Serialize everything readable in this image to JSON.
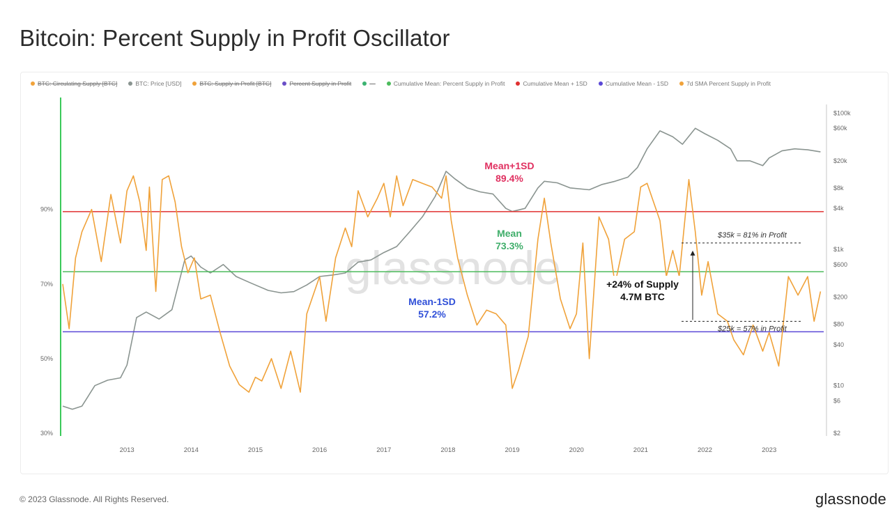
{
  "page": {
    "title": "Bitcoin: Percent Supply in Profit Oscillator",
    "footer": "© 2023 Glassnode. All Rights Reserved.",
    "brand": "glassnode"
  },
  "legend": [
    {
      "label": "BTC: Circulating Supply [BTC]",
      "color": "#f0a23a",
      "struck": true
    },
    {
      "label": "BTC: Price [USD]",
      "color": "#8a9490",
      "struck": false
    },
    {
      "label": "BTC: Supply in Profit [BTC]",
      "color": "#f0a23a",
      "struck": true
    },
    {
      "label": "Percent Supply in Profit",
      "color": "#6a4fc7",
      "struck": true
    },
    {
      "label": "—",
      "color": "#3cb371",
      "struck": true
    },
    {
      "label": "Cumulative Mean: Percent Supply in Profit",
      "color": "#4cbb5c",
      "struck": false
    },
    {
      "label": "Cumulative Mean + 1SD",
      "color": "#e03030",
      "struck": false
    },
    {
      "label": "Cumulative Mean - 1SD",
      "color": "#5a48d6",
      "struck": false
    },
    {
      "label": "7d SMA Percent Supply in Profit",
      "color": "#f0a23a",
      "struck": false
    }
  ],
  "chart_data": {
    "type": "line",
    "title": "Bitcoin: Percent Supply in Profit Oscillator",
    "watermark": "glassnode",
    "x_range": [
      2012.0,
      2023.85
    ],
    "x_ticks": [
      {
        "value": 2013,
        "label": "2013"
      },
      {
        "value": 2014,
        "label": "2014"
      },
      {
        "value": 2015,
        "label": "2015"
      },
      {
        "value": 2016,
        "label": "2016"
      },
      {
        "value": 2017,
        "label": "2017"
      },
      {
        "value": 2018,
        "label": "2018"
      },
      {
        "value": 2019,
        "label": "2019"
      },
      {
        "value": 2020,
        "label": "2020"
      },
      {
        "value": 2021,
        "label": "2021"
      },
      {
        "value": 2022,
        "label": "2022"
      },
      {
        "value": 2023,
        "label": "2023"
      }
    ],
    "y_left": {
      "range": [
        30,
        120
      ],
      "ticks": [
        {
          "value": 90,
          "label": "90%"
        },
        {
          "value": 70,
          "label": "70%"
        },
        {
          "value": 50,
          "label": "50%"
        },
        {
          "value": 30,
          "label": "30%"
        }
      ]
    },
    "y_right": {
      "scale": "log",
      "range": [
        2,
        170000
      ],
      "ticks": [
        {
          "value": 100000,
          "label": "$100k"
        },
        {
          "value": 60000,
          "label": "$60k"
        },
        {
          "value": 20000,
          "label": "$20k"
        },
        {
          "value": 8000,
          "label": "$8k"
        },
        {
          "value": 4000,
          "label": "$4k"
        },
        {
          "value": 1000,
          "label": "$1k"
        },
        {
          "value": 600,
          "label": "$600"
        },
        {
          "value": 200,
          "label": "$200"
        },
        {
          "value": 80,
          "label": "$80"
        },
        {
          "value": 40,
          "label": "$40"
        },
        {
          "value": 10,
          "label": "$10"
        },
        {
          "value": 6,
          "label": "$6"
        },
        {
          "value": 2,
          "label": "$2"
        }
      ]
    },
    "reference_lines": [
      {
        "name": "Mean+1SD",
        "value": 89.4,
        "color": "#e03030",
        "label_title": "Mean+1SD",
        "label_value": "89.4%",
        "label_color": "#e03060"
      },
      {
        "name": "Mean",
        "value": 73.3,
        "color": "#4cbb5c",
        "label_title": "Mean",
        "label_value": "73.3%",
        "label_color": "#3fae6a"
      },
      {
        "name": "Mean-1SD",
        "value": 57.2,
        "color": "#5a48d6",
        "label_title": "Mean-1SD",
        "label_value": "57.2%",
        "label_color": "#3050d8"
      }
    ],
    "series": [
      {
        "name": "7d SMA Percent Supply in Profit",
        "color": "#f0a23a",
        "axis": "left",
        "x": [
          2012.0,
          2012.1,
          2012.2,
          2012.3,
          2012.45,
          2012.6,
          2012.75,
          2012.9,
          2013.0,
          2013.1,
          2013.2,
          2013.3,
          2013.35,
          2013.45,
          2013.55,
          2013.65,
          2013.75,
          2013.85,
          2013.95,
          2014.05,
          2014.15,
          2014.3,
          2014.45,
          2014.6,
          2014.75,
          2014.9,
          2015.0,
          2015.1,
          2015.25,
          2015.4,
          2015.55,
          2015.7,
          2015.8,
          2015.9,
          2016.0,
          2016.1,
          2016.25,
          2016.4,
          2016.5,
          2016.6,
          2016.75,
          2016.9,
          2017.0,
          2017.1,
          2017.2,
          2017.3,
          2017.45,
          2017.6,
          2017.75,
          2017.9,
          2017.97,
          2018.05,
          2018.15,
          2018.3,
          2018.45,
          2018.6,
          2018.75,
          2018.9,
          2019.0,
          2019.1,
          2019.25,
          2019.4,
          2019.5,
          2019.6,
          2019.75,
          2019.9,
          2020.0,
          2020.1,
          2020.2,
          2020.35,
          2020.5,
          2020.6,
          2020.75,
          2020.9,
          2021.0,
          2021.1,
          2021.2,
          2021.3,
          2021.4,
          2021.5,
          2021.6,
          2021.75,
          2021.85,
          2021.95,
          2022.05,
          2022.2,
          2022.35,
          2022.45,
          2022.6,
          2022.75,
          2022.9,
          2023.0,
          2023.15,
          2023.3,
          2023.45,
          2023.6,
          2023.7,
          2023.8
        ],
        "y": [
          70,
          58,
          77,
          84,
          90,
          76,
          94,
          81,
          95,
          99,
          92,
          79,
          96,
          68,
          98,
          99,
          92,
          80,
          73,
          77,
          66,
          67,
          57,
          48,
          43,
          41,
          45,
          44,
          50,
          42,
          52,
          41,
          62,
          67,
          72,
          60,
          77,
          85,
          80,
          95,
          88,
          93,
          97,
          88,
          99,
          91,
          98,
          97,
          96,
          93,
          99,
          87,
          77,
          67,
          59,
          63,
          62,
          59,
          42,
          47,
          56,
          82,
          93,
          81,
          66,
          58,
          62,
          81,
          50,
          88,
          82,
          70,
          82,
          84,
          96,
          97,
          92,
          87,
          72,
          79,
          72,
          98,
          84,
          67,
          76,
          62,
          60,
          55,
          51,
          59,
          52,
          57,
          48,
          72,
          67,
          72,
          60,
          68
        ]
      },
      {
        "name": "BTC: Price [USD]",
        "color": "#8a9490",
        "axis": "right",
        "x": [
          2012.0,
          2012.15,
          2012.3,
          2012.5,
          2012.7,
          2012.9,
          2013.0,
          2013.15,
          2013.3,
          2013.5,
          2013.7,
          2013.9,
          2014.0,
          2014.15,
          2014.3,
          2014.5,
          2014.7,
          2014.9,
          2015.0,
          2015.2,
          2015.4,
          2015.6,
          2015.8,
          2016.0,
          2016.2,
          2016.4,
          2016.6,
          2016.8,
          2017.0,
          2017.2,
          2017.4,
          2017.6,
          2017.8,
          2017.97,
          2018.1,
          2018.3,
          2018.5,
          2018.7,
          2018.9,
          2019.0,
          2019.2,
          2019.4,
          2019.5,
          2019.7,
          2019.9,
          2020.2,
          2020.4,
          2020.6,
          2020.8,
          2020.95,
          2021.1,
          2021.3,
          2021.5,
          2021.65,
          2021.85,
          2022.0,
          2022.2,
          2022.4,
          2022.5,
          2022.7,
          2022.9,
          2023.0,
          2023.2,
          2023.4,
          2023.6,
          2023.8
        ],
        "y": [
          5,
          4.5,
          5,
          10,
          12,
          13,
          20,
          100,
          120,
          95,
          130,
          700,
          800,
          550,
          450,
          600,
          400,
          330,
          300,
          250,
          230,
          240,
          300,
          400,
          420,
          450,
          650,
          700,
          900,
          1100,
          1800,
          3000,
          6000,
          14000,
          11000,
          8000,
          7000,
          6500,
          4000,
          3600,
          4000,
          8000,
          10000,
          9500,
          8000,
          7500,
          9000,
          10000,
          11500,
          16000,
          30000,
          55000,
          45000,
          35000,
          60000,
          50000,
          40000,
          30000,
          20000,
          20000,
          17000,
          22000,
          28000,
          30000,
          29000,
          27000
        ]
      }
    ],
    "annotations": [
      {
        "text": "$35k = 81% in Profit",
        "value": 81
      },
      {
        "text": "$25k = 57% in Profit",
        "value": 57
      },
      {
        "line1": "+24% of Supply",
        "line2": "4.7M BTC"
      }
    ]
  }
}
